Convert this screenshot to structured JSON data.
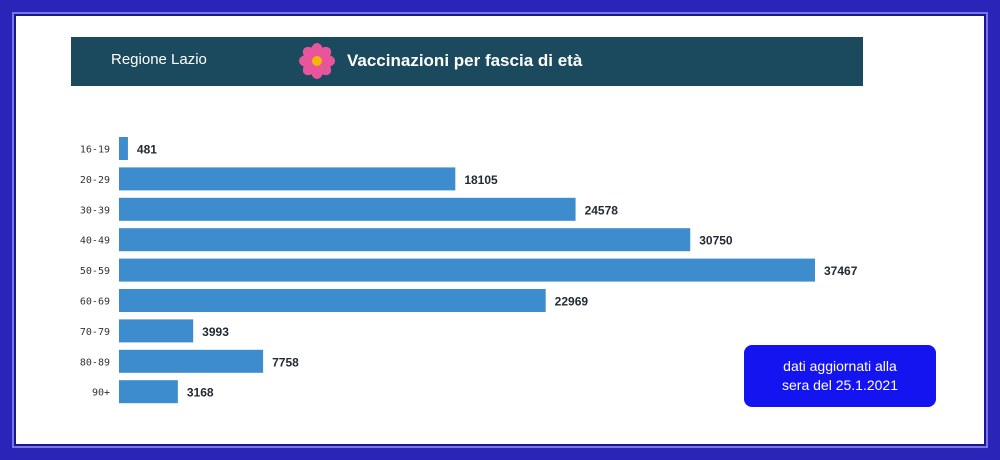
{
  "header": {
    "region": "Regione Lazio",
    "title": "Vaccinazioni per fascia di età",
    "icon": "flower-icon"
  },
  "note": {
    "line1": "dati aggiornati alla",
    "line2": "sera del 25.1.2021"
  },
  "colors": {
    "bar": "#3d8ccd",
    "header": "#1b4a5e",
    "note_bg": "#1414f0",
    "frame": "#2a24b8"
  },
  "chart_data": {
    "type": "bar",
    "orientation": "horizontal",
    "categories": [
      "16-19",
      "20-29",
      "30-39",
      "40-49",
      "50-59",
      "60-69",
      "70-79",
      "80-89",
      "90+"
    ],
    "values": [
      481,
      18105,
      24578,
      30750,
      37467,
      22969,
      3993,
      7758,
      3168
    ],
    "xlim": [
      0,
      37467
    ],
    "grid": false,
    "data_labels": true
  }
}
